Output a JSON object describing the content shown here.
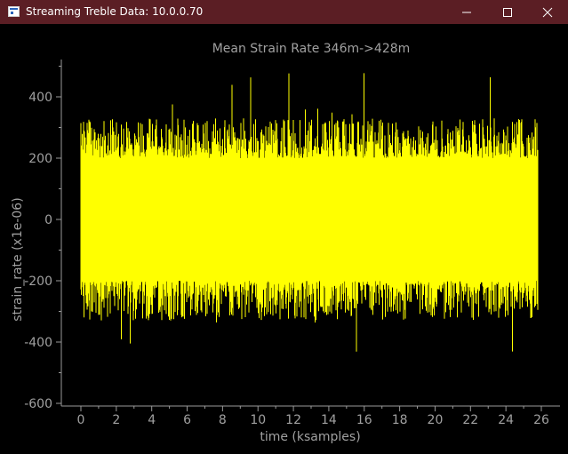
{
  "window": {
    "title": "Streaming Treble Data: 10.0.0.70",
    "titlebar_color": "#5b1e24"
  },
  "chart_data": {
    "type": "line",
    "title": "Mean Strain Rate 346m->428m",
    "xlabel": "time (ksamples)",
    "ylabel": "strain_rate (x1e-06)",
    "xlim": [
      -1,
      27
    ],
    "ylim": [
      -600,
      520
    ],
    "x_ticks": [
      0,
      2,
      4,
      6,
      8,
      10,
      12,
      14,
      16,
      18,
      20,
      22,
      24,
      26
    ],
    "y_ticks": [
      -600,
      -400,
      -200,
      0,
      200,
      400
    ],
    "x_data_range": [
      0,
      25.8
    ],
    "y_typical_band": [
      -200,
      200
    ],
    "y_observed_extremes": [
      -440,
      490
    ],
    "series": [
      {
        "color": "#ffff00"
      }
    ],
    "background": "#000000",
    "axis_color": "#9a9a9a",
    "text_color": "#a0a0a0",
    "grid": false,
    "legend": "none"
  }
}
